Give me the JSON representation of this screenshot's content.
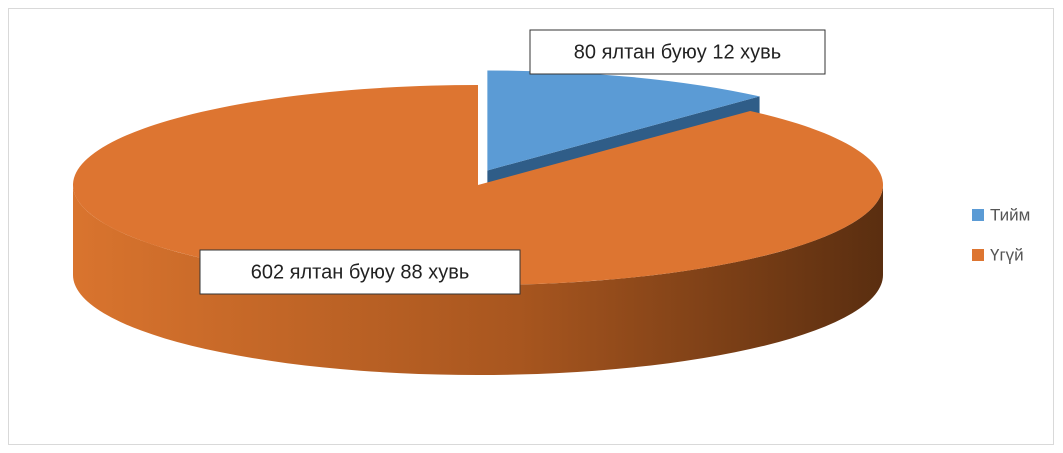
{
  "chart_data": {
    "type": "pie",
    "three_d": true,
    "exploded": [
      0
    ],
    "categories": [
      "Тийм",
      "Үгүй"
    ],
    "values": [
      80,
      602
    ],
    "value_labels": [
      "80 ялтан буюу 12 хувь",
      "602 ялтан буюу 88 хувь"
    ],
    "colors": [
      "#5b9bd5",
      "#dd7531"
    ],
    "legend": "right"
  }
}
